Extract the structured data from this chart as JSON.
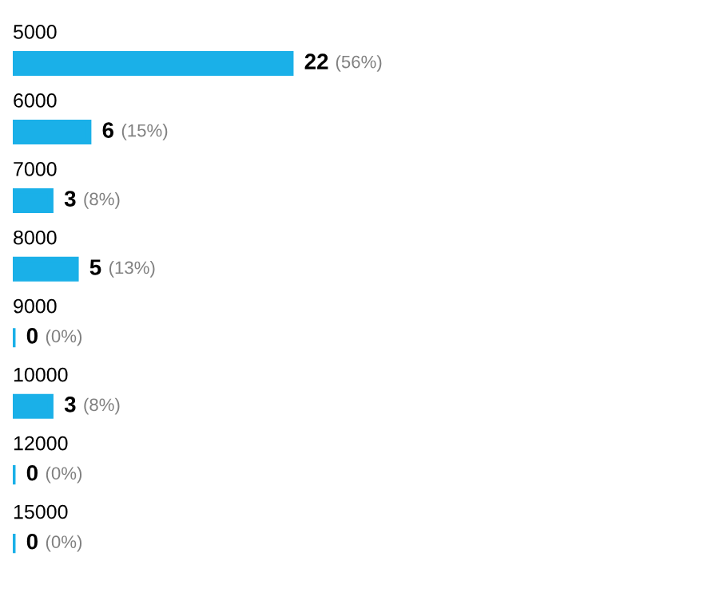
{
  "chart_data": {
    "type": "bar",
    "orientation": "horizontal",
    "categories": [
      "5000",
      "6000",
      "7000",
      "8000",
      "9000",
      "10000",
      "12000",
      "15000"
    ],
    "values": [
      22,
      6,
      3,
      5,
      0,
      3,
      0,
      0
    ],
    "value_labels": [
      "22 (56%)",
      "6 (15%)",
      "3 (8%)",
      "5 (13%)",
      "0 (0%)",
      "3 (8%)",
      "0 (0%)",
      "0 (0%)"
    ],
    "color": "#1ab0e8"
  }
}
